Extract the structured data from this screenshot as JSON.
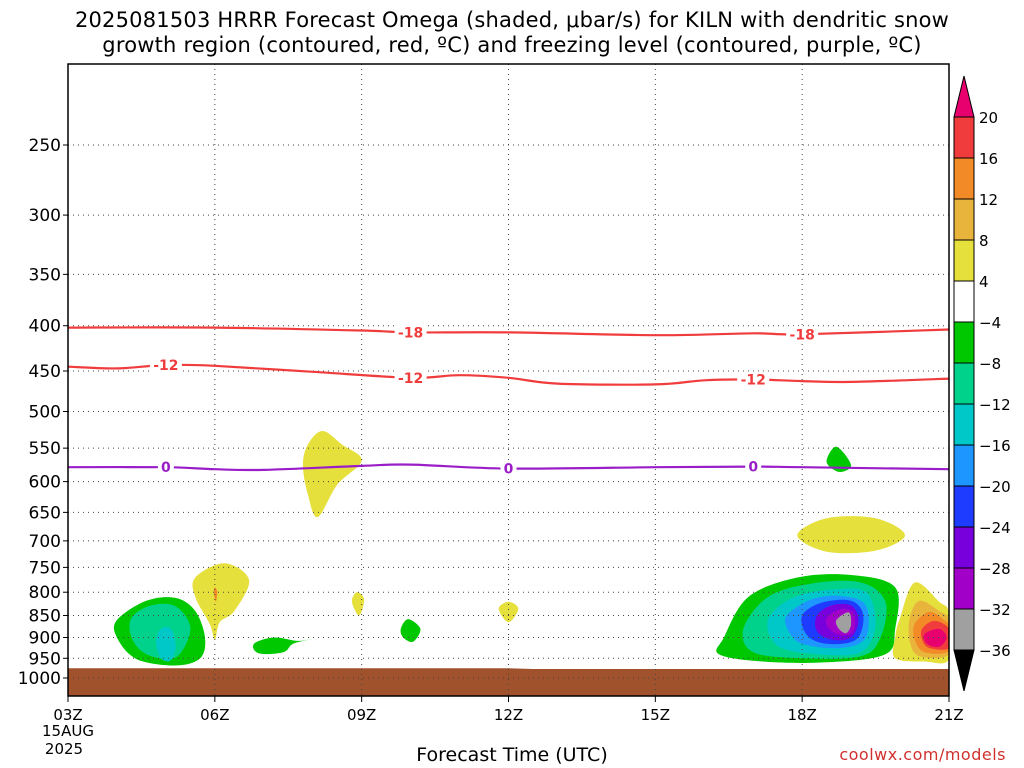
{
  "title_line1": "2025081503 HRRR Forecast Omega (shaded, μbar/s) for KILN with dendritic snow",
  "title_line2": "growth region (contoured, red, ºC) and freezing level (contoured, purple, ºC)",
  "xlabel": "Forecast Time (UTC)",
  "credit": "coolwx.com/models",
  "date_label_1": "15AUG",
  "date_label_2": "2025",
  "chart_data": {
    "type": "heatmap",
    "x_ticks": [
      "03Z",
      "06Z",
      "09Z",
      "12Z",
      "15Z",
      "18Z",
      "21Z"
    ],
    "x_range_hours": [
      3,
      21
    ],
    "y_ticks": [
      250,
      300,
      350,
      400,
      450,
      500,
      550,
      600,
      650,
      700,
      750,
      800,
      850,
      900,
      950,
      1000
    ],
    "y_axis_reversed_log_pressure": true,
    "grid": true,
    "colorbar": {
      "labels": [
        "20",
        "16",
        "12",
        "8",
        "4",
        "−4",
        "−8",
        "−12",
        "−16",
        "−20",
        "−24",
        "−28",
        "−32",
        "−36"
      ],
      "colors": [
        "#e8006f",
        "#f03c3c",
        "#f28a28",
        "#e8b43c",
        "#e6e03c",
        "#ffffff",
        "#00c800",
        "#00d28c",
        "#00c8c8",
        "#1e96ff",
        "#1e3cff",
        "#7800dc",
        "#a000c8",
        "#a0a0a0",
        "#000000"
      ]
    },
    "series": [
      {
        "name": "-18",
        "color": "#f03c3c",
        "points": [
          [
            3,
            402
          ],
          [
            6,
            402
          ],
          [
            9,
            405
          ],
          [
            10,
            407
          ],
          [
            12,
            407
          ],
          [
            15,
            410
          ],
          [
            17,
            408
          ],
          [
            18,
            409
          ],
          [
            21,
            404
          ]
        ],
        "labels_at": [
          10,
          18
        ]
      },
      {
        "name": "-12",
        "color": "#f03c3c",
        "points": [
          [
            3,
            445
          ],
          [
            4,
            447
          ],
          [
            5,
            443
          ],
          [
            6,
            444
          ],
          [
            8,
            451
          ],
          [
            10,
            458
          ],
          [
            11,
            455
          ],
          [
            12,
            458
          ],
          [
            13,
            465
          ],
          [
            15,
            466
          ],
          [
            16,
            461
          ],
          [
            17,
            460
          ],
          [
            18,
            462
          ],
          [
            19,
            463
          ],
          [
            21,
            459
          ]
        ],
        "labels_at": [
          5,
          10,
          17
        ]
      },
      {
        "name": "0",
        "color": "#9a1ec8",
        "points": [
          [
            3,
            578
          ],
          [
            5,
            578
          ],
          [
            6,
            581
          ],
          [
            7,
            582
          ],
          [
            9,
            576
          ],
          [
            10,
            574
          ],
          [
            12,
            580
          ],
          [
            15,
            578
          ],
          [
            17,
            577
          ],
          [
            18,
            578
          ],
          [
            21,
            581
          ]
        ],
        "labels_at": [
          5,
          12,
          17
        ]
      }
    ],
    "shaded_regions": [
      {
        "level": "-4",
        "color": "#00c800",
        "points": [
          [
            4.0,
            860
          ],
          [
            4.6,
            818
          ],
          [
            5.2,
            812
          ],
          [
            5.6,
            840
          ],
          [
            5.8,
            900
          ],
          [
            5.7,
            950
          ],
          [
            5.2,
            968
          ],
          [
            4.4,
            952
          ],
          [
            4.0,
            900
          ]
        ]
      },
      {
        "level": "-8",
        "color": "#00d28c",
        "points": [
          [
            4.3,
            855
          ],
          [
            4.7,
            828
          ],
          [
            5.2,
            830
          ],
          [
            5.5,
            880
          ],
          [
            5.2,
            948
          ],
          [
            4.6,
            940
          ],
          [
            4.3,
            900
          ]
        ]
      },
      {
        "level": "-12",
        "color": "#00c8c8",
        "points": [
          [
            4.9,
            880
          ],
          [
            5.1,
            880
          ],
          [
            5.2,
            920
          ],
          [
            5.1,
            955
          ],
          [
            4.9,
            950
          ],
          [
            4.8,
            910
          ]
        ]
      },
      {
        "level": "4",
        "color": "#e6e03c",
        "points": [
          [
            5.6,
            770
          ],
          [
            6.2,
            742
          ],
          [
            6.7,
            775
          ],
          [
            6.4,
            840
          ],
          [
            6.1,
            865
          ],
          [
            6.0,
            905
          ],
          [
            5.9,
            870
          ],
          [
            5.6,
            810
          ]
        ]
      },
      {
        "level": "8",
        "color": "#f28a28",
        "points": [
          [
            6.0,
            790
          ],
          [
            6.05,
            800
          ],
          [
            6.02,
            820
          ],
          [
            5.98,
            800
          ]
        ]
      },
      {
        "level": "-4",
        "color": "#00c800",
        "points": [
          [
            6.8,
            915
          ],
          [
            7.2,
            900
          ],
          [
            7.7,
            908
          ],
          [
            8.0,
            903
          ],
          [
            7.6,
            915
          ],
          [
            7.4,
            935
          ],
          [
            6.9,
            938
          ]
        ]
      },
      {
        "level": "4",
        "color": "#e6e03c",
        "points": [
          [
            7.9,
            545
          ],
          [
            8.2,
            526
          ],
          [
            8.6,
            545
          ],
          [
            9.0,
            568
          ],
          [
            8.5,
            605
          ],
          [
            8.1,
            658
          ],
          [
            7.9,
            620
          ],
          [
            7.8,
            575
          ]
        ]
      },
      {
        "level": "4",
        "color": "#e6e03c",
        "points": [
          [
            8.8,
            820
          ],
          [
            8.9,
            800
          ],
          [
            9.05,
            815
          ],
          [
            8.95,
            850
          ]
        ]
      },
      {
        "level": "-4",
        "color": "#00c800",
        "points": [
          [
            9.8,
            880
          ],
          [
            9.95,
            858
          ],
          [
            10.2,
            880
          ],
          [
            10.05,
            910
          ],
          [
            9.85,
            900
          ]
        ]
      },
      {
        "level": "4",
        "color": "#e6e03c",
        "points": [
          [
            11.8,
            835
          ],
          [
            12.0,
            820
          ],
          [
            12.2,
            835
          ],
          [
            12.0,
            865
          ]
        ]
      },
      {
        "level": "-4",
        "color": "#00c800",
        "points": [
          [
            18.5,
            570
          ],
          [
            18.7,
            548
          ],
          [
            19.0,
            575
          ],
          [
            18.75,
            585
          ]
        ]
      },
      {
        "level": "4",
        "color": "#e6e03c",
        "points": [
          [
            17.9,
            690
          ],
          [
            18.5,
            660
          ],
          [
            19.5,
            660
          ],
          [
            20.1,
            690
          ],
          [
            19.5,
            718
          ],
          [
            18.5,
            720
          ]
        ]
      },
      {
        "level": "-4",
        "color": "#00c800",
        "points": [
          [
            16.4,
            900
          ],
          [
            16.9,
            810
          ],
          [
            17.9,
            770
          ],
          [
            19.0,
            765
          ],
          [
            19.9,
            790
          ],
          [
            19.9,
            880
          ],
          [
            19.7,
            940
          ],
          [
            18.5,
            960
          ],
          [
            17.2,
            958
          ],
          [
            16.3,
            940
          ]
        ]
      },
      {
        "level": "-8",
        "color": "#00d28c",
        "points": [
          [
            16.8,
            880
          ],
          [
            17.3,
            810
          ],
          [
            18.2,
            782
          ],
          [
            19.2,
            780
          ],
          [
            19.7,
            820
          ],
          [
            19.6,
            900
          ],
          [
            19.2,
            945
          ],
          [
            18.0,
            950
          ],
          [
            17.0,
            935
          ]
        ]
      },
      {
        "level": "-12",
        "color": "#00c8c8",
        "points": [
          [
            17.3,
            860
          ],
          [
            17.8,
            812
          ],
          [
            18.6,
            795
          ],
          [
            19.3,
            800
          ],
          [
            19.5,
            870
          ],
          [
            19.2,
            935
          ],
          [
            18.3,
            940
          ],
          [
            17.5,
            920
          ]
        ]
      },
      {
        "level": "-16",
        "color": "#1e96ff",
        "points": [
          [
            17.7,
            848
          ],
          [
            18.2,
            815
          ],
          [
            18.8,
            808
          ],
          [
            19.3,
            828
          ],
          [
            19.3,
            900
          ],
          [
            18.8,
            925
          ],
          [
            18.0,
            915
          ],
          [
            17.7,
            880
          ]
        ]
      },
      {
        "level": "-20",
        "color": "#1e3cff",
        "points": [
          [
            18.0,
            850
          ],
          [
            18.4,
            822
          ],
          [
            19.0,
            818
          ],
          [
            19.25,
            850
          ],
          [
            19.1,
            905
          ],
          [
            18.5,
            915
          ],
          [
            18.1,
            895
          ]
        ]
      },
      {
        "level": "-24",
        "color": "#7800dc",
        "points": [
          [
            18.3,
            850
          ],
          [
            18.6,
            828
          ],
          [
            19.0,
            828
          ],
          [
            19.15,
            860
          ],
          [
            19.0,
            900
          ],
          [
            18.6,
            905
          ],
          [
            18.3,
            885
          ]
        ]
      },
      {
        "level": "-28",
        "color": "#a000c8",
        "points": [
          [
            18.5,
            855
          ],
          [
            18.8,
            836
          ],
          [
            19.05,
            845
          ],
          [
            19.05,
            885
          ],
          [
            18.8,
            895
          ],
          [
            18.55,
            880
          ]
        ]
      },
      {
        "level": "-32",
        "color": "#a0a0a0",
        "points": [
          [
            18.7,
            860
          ],
          [
            18.95,
            843
          ],
          [
            19.0,
            870
          ],
          [
            18.9,
            890
          ],
          [
            18.75,
            880
          ]
        ]
      },
      {
        "level": "4",
        "color": "#e6e03c",
        "points": [
          [
            20.0,
            855
          ],
          [
            20.3,
            780
          ],
          [
            20.8,
            820
          ],
          [
            21.0,
            845
          ],
          [
            21.0,
            952
          ],
          [
            20.5,
            958
          ],
          [
            19.9,
            950
          ],
          [
            19.9,
            900
          ]
        ]
      },
      {
        "level": "8",
        "color": "#e8b43c",
        "points": [
          [
            20.2,
            855
          ],
          [
            20.4,
            818
          ],
          [
            20.8,
            840
          ],
          [
            21.0,
            860
          ],
          [
            21.0,
            940
          ],
          [
            20.4,
            945
          ],
          [
            20.2,
            910
          ]
        ]
      },
      {
        "level": "12",
        "color": "#f28a28",
        "points": [
          [
            20.3,
            868
          ],
          [
            20.6,
            842
          ],
          [
            20.9,
            860
          ],
          [
            21.0,
            875
          ],
          [
            21.0,
            932
          ],
          [
            20.5,
            935
          ],
          [
            20.3,
            905
          ]
        ]
      },
      {
        "level": "16",
        "color": "#f03c3c",
        "points": [
          [
            20.45,
            880
          ],
          [
            20.7,
            862
          ],
          [
            21.0,
            880
          ],
          [
            21.0,
            925
          ],
          [
            20.6,
            925
          ],
          [
            20.45,
            905
          ]
        ]
      },
      {
        "level": "20",
        "color": "#e8006f",
        "points": [
          [
            20.5,
            892
          ],
          [
            20.8,
            880
          ],
          [
            20.95,
            900
          ],
          [
            20.8,
            922
          ],
          [
            20.55,
            915
          ]
        ]
      }
    ],
    "terrain": {
      "color": "#a0522d",
      "points": [
        [
          3,
          975
        ],
        [
          12,
          975
        ],
        [
          12.5,
          977
        ],
        [
          21,
          977
        ]
      ]
    }
  }
}
